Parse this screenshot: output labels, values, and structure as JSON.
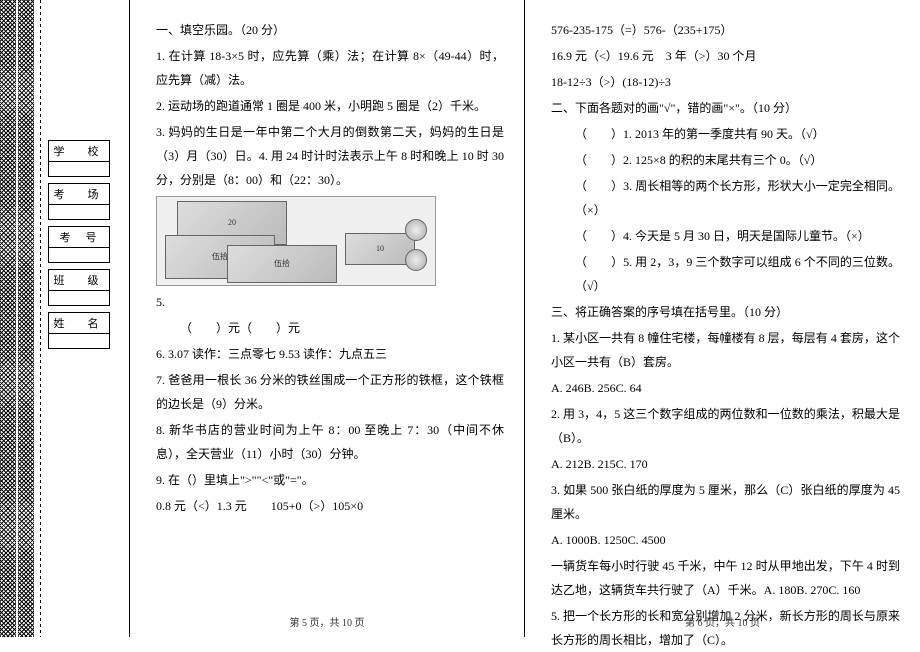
{
  "binding": {
    "labels": [
      "学　校",
      "考　场",
      "考　号",
      "班　级",
      "姓　名"
    ]
  },
  "left": {
    "lines": [
      "一、填空乐园。（20 分）",
      "1. 在计算 18-3×5 时，应先算（乘）法；在计算 8×（49-44）时，应先算（减）法。",
      "2. 运动场的跑道通常 1 圈是 400 米，小明跑 5 圈是（2）千米。",
      "3. 妈妈的生日是一年中第二个大月的倒数第二天，妈妈的生日是（3）月（30）日。4. 用 24 时计时法表示上午 8 时和晚上 10 时 30 分，分别是（8：00）和（22：30）。"
    ],
    "q5": "5.",
    "q5b": "（　　）元（　　）元",
    "lines2": [
      "6. 3.07 读作：三点零七 9.53 读作：九点五三",
      "7. 爸爸用一根长 36 分米的铁丝围成一个正方形的铁框，这个铁框的边长是（9）分米。",
      "8. 新华书店的营业时间为上午 8：00 至晚上 7：30（中间不休息），全天营业（11）小时（30）分钟。",
      "9. 在（）里填上\">\"\"<\"或\"=\"。",
      "0.8 元（<）1.3 元　　105+0（>）105×0"
    ],
    "footer": "第 5 页，共 10 页",
    "money": {
      "b20": "20",
      "b50": "伍拾",
      "b10": "10"
    }
  },
  "right": {
    "lines": [
      "576-235-175（=）576-（235+175）",
      "16.9 元（<）19.6 元　3 年（>）30 个月",
      "18-12÷3（>）(18-12)÷3",
      "二、下面各题对的画\"√\"，错的画\"×\"。（10 分）"
    ],
    "judges": [
      "（　　）1. 2013 年的第一季度共有 90 天。（√）",
      "（　　）2. 125×8 的积的末尾共有三个 0。（√）",
      "（　　）3. 周长相等的两个长方形，形状大小一定完全相同。（×）",
      "（　　）4. 今天是 5 月 30 日，明天是国际儿童节。（×）",
      "（　　）5. 用 2，3，9 三个数字可以组成 6 个不同的三位数。（√）"
    ],
    "lines2": [
      "三、将正确答案的序号填在括号里。（10 分）",
      "1. 某小区一共有 8 幢住宅楼，每幢楼有 8 层，每层有 4 套房，这个小区一共有（B）套房。",
      "A. 246B. 256C. 64",
      "2. 用 3，4，5 这三个数字组成的两位数和一位数的乘法，积最大是（B）。",
      "A. 212B. 215C. 170",
      "3. 如果 500 张白纸的厚度为 5 厘米，那么（C）张白纸的厚度为 45 厘米。",
      "A. 1000B. 1250C. 4500",
      "一辆货车每小时行驶 45 千米，中午 12 时从甲地出发，下午 4 时到达乙地，这辆货车共行驶了（A）千米。A. 180B. 270C. 160",
      "5. 把一个长方形的长和宽分别增加 2 分米，新长方形的周长与原来长方形的周长相比，增加了（C）。"
    ],
    "footer": "第 6 页，共 10 页"
  }
}
